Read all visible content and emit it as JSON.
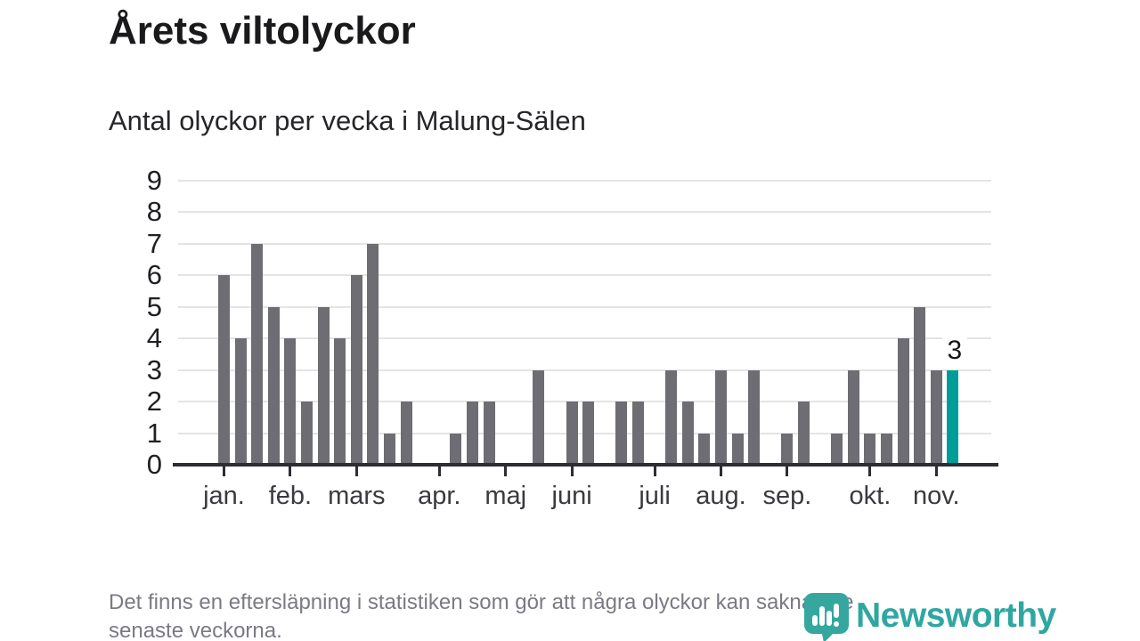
{
  "header": {
    "title": "Årets viltolyckor",
    "subtitle": "Antal olyckor per vecka i Malung-Sälen"
  },
  "chart_data": {
    "type": "bar",
    "title": "Årets viltolyckor",
    "subtitle": "Antal olyckor per vecka i Malung-Sälen",
    "x_unit": "vecka",
    "values": [
      6,
      4,
      7,
      5,
      4,
      2,
      5,
      4,
      6,
      7,
      1,
      2,
      0,
      0,
      1,
      2,
      2,
      0,
      0,
      3,
      0,
      2,
      2,
      0,
      2,
      2,
      0,
      3,
      2,
      1,
      3,
      1,
      3,
      0,
      1,
      2,
      0,
      1,
      3,
      1,
      1,
      4,
      5,
      3,
      3
    ],
    "month_ticks": [
      {
        "label": "jan.",
        "week_index": 0
      },
      {
        "label": "feb.",
        "week_index": 4
      },
      {
        "label": "mars",
        "week_index": 8
      },
      {
        "label": "apr.",
        "week_index": 13
      },
      {
        "label": "maj",
        "week_index": 17
      },
      {
        "label": "juni",
        "week_index": 21
      },
      {
        "label": "juli",
        "week_index": 26
      },
      {
        "label": "aug.",
        "week_index": 30
      },
      {
        "label": "sep.",
        "week_index": 34
      },
      {
        "label": "okt.",
        "week_index": 39
      },
      {
        "label": "nov.",
        "week_index": 43
      }
    ],
    "yticks": [
      0,
      1,
      2,
      3,
      4,
      5,
      6,
      7,
      8,
      9
    ],
    "ylim": [
      0,
      9
    ],
    "grid": true,
    "annotation": {
      "text": "3",
      "week_index": 44
    },
    "highlight_week_index": 44,
    "bar_color": "#6e6d73",
    "highlight_color": "#009d98",
    "grid_color": "#e4e4e6",
    "axis_color": "#2d2d32"
  },
  "footer": {
    "note_lines": [
      "Det finns en eftersläpning i statistiken som gör att några olyckor kan saknas de",
      "senaste veckorna."
    ],
    "logo_text": "Newsworthy",
    "logo_color": "#2fa7a1"
  }
}
